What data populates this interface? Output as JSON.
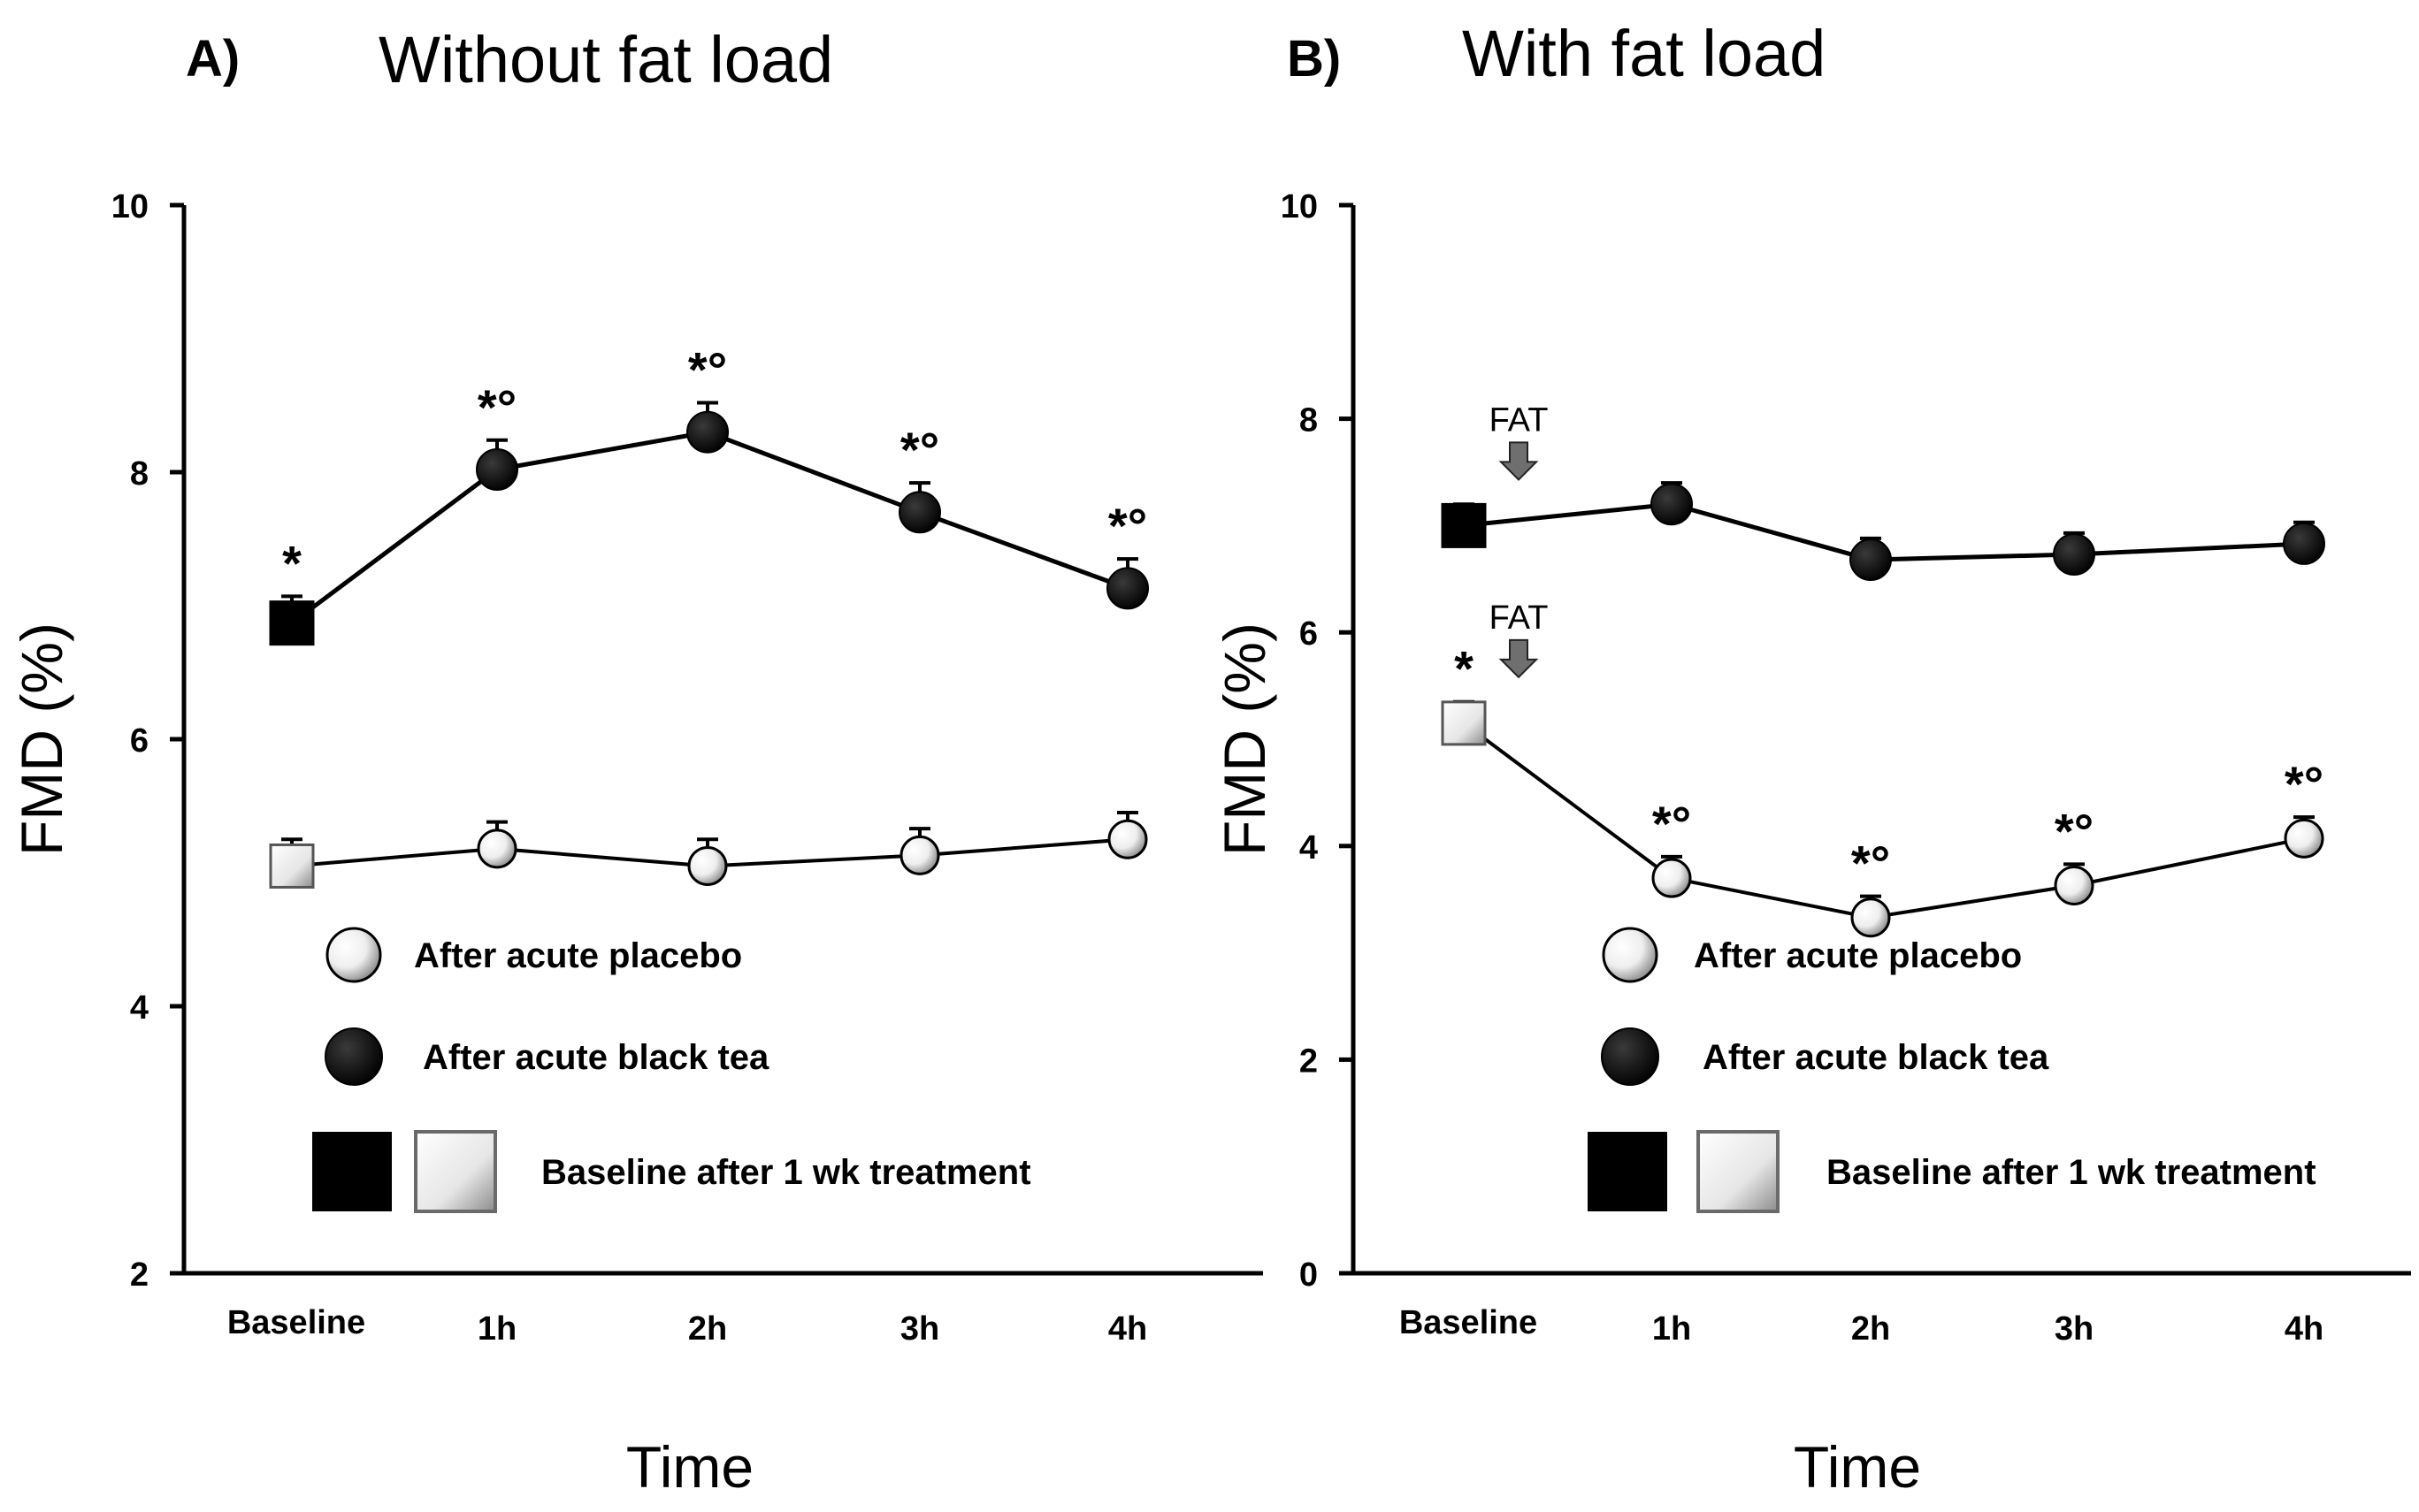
{
  "chart_data": [
    {
      "type": "line",
      "panel": "A)",
      "title": "Without fat load",
      "xlabel": "Time",
      "ylabel": "FMD (%)",
      "ylim": [
        2,
        10
      ],
      "yticks": [
        2,
        4,
        6,
        8,
        10
      ],
      "categories": [
        "Baseline",
        "1h",
        "2h",
        "3h",
        "4h"
      ],
      "series": [
        {
          "name": "After acute black tea",
          "marker": "filled",
          "values": [
            6.87,
            8.02,
            8.3,
            7.7,
            7.13
          ],
          "errors": [
            0.2,
            0.22,
            0.22,
            0.22,
            0.22
          ]
        },
        {
          "name": "After acute placebo",
          "marker": "open",
          "values": [
            5.05,
            5.18,
            5.05,
            5.13,
            5.25
          ],
          "errors": [
            0.2,
            0.2,
            0.2,
            0.2,
            0.2
          ]
        }
      ],
      "annotations": [
        {
          "series": 0,
          "index": 0,
          "text": "*"
        },
        {
          "series": 0,
          "index": 1,
          "text": "*°"
        },
        {
          "series": 0,
          "index": 2,
          "text": "*°"
        },
        {
          "series": 0,
          "index": 3,
          "text": "*°"
        },
        {
          "series": 0,
          "index": 4,
          "text": "*°"
        }
      ],
      "fat_markers": [],
      "legend": [
        {
          "marker": "open-circle",
          "label": "After acute placebo"
        },
        {
          "marker": "filled-circle",
          "label": "After acute black tea"
        },
        {
          "marker": "squares",
          "label": "Baseline after 1 wk treatment"
        }
      ]
    },
    {
      "type": "line",
      "panel": "B)",
      "title": "With fat load",
      "xlabel": "Time",
      "ylabel": "FMD (%)",
      "ylim": [
        0,
        10
      ],
      "yticks": [
        0,
        2,
        4,
        6,
        8,
        10
      ],
      "categories": [
        "Baseline",
        "1h",
        "2h",
        "3h",
        "4h"
      ],
      "series": [
        {
          "name": "After acute black tea",
          "marker": "filled",
          "values": [
            7.0,
            7.2,
            6.68,
            6.73,
            6.83
          ],
          "errors": [
            0.2,
            0.2,
            0.2,
            0.2,
            0.2
          ]
        },
        {
          "name": "After acute placebo",
          "marker": "open",
          "values": [
            5.15,
            3.7,
            3.33,
            3.63,
            4.07
          ],
          "errors": [
            0.2,
            0.2,
            0.2,
            0.2,
            0.2
          ]
        }
      ],
      "annotations": [
        {
          "series": 1,
          "index": 0,
          "text": "*"
        },
        {
          "series": 1,
          "index": 1,
          "text": "*°"
        },
        {
          "series": 1,
          "index": 2,
          "text": "*°"
        },
        {
          "series": 1,
          "index": 3,
          "text": "*°"
        },
        {
          "series": 1,
          "index": 4,
          "text": "*°"
        }
      ],
      "fat_markers": [
        {
          "series": 0,
          "label": "FAT"
        },
        {
          "series": 1,
          "label": "FAT"
        }
      ],
      "legend": [
        {
          "marker": "open-circle",
          "label": "After acute placebo"
        },
        {
          "marker": "filled-circle",
          "label": "After acute black tea"
        },
        {
          "marker": "squares",
          "label": "Baseline after 1 wk treatment"
        }
      ]
    }
  ]
}
